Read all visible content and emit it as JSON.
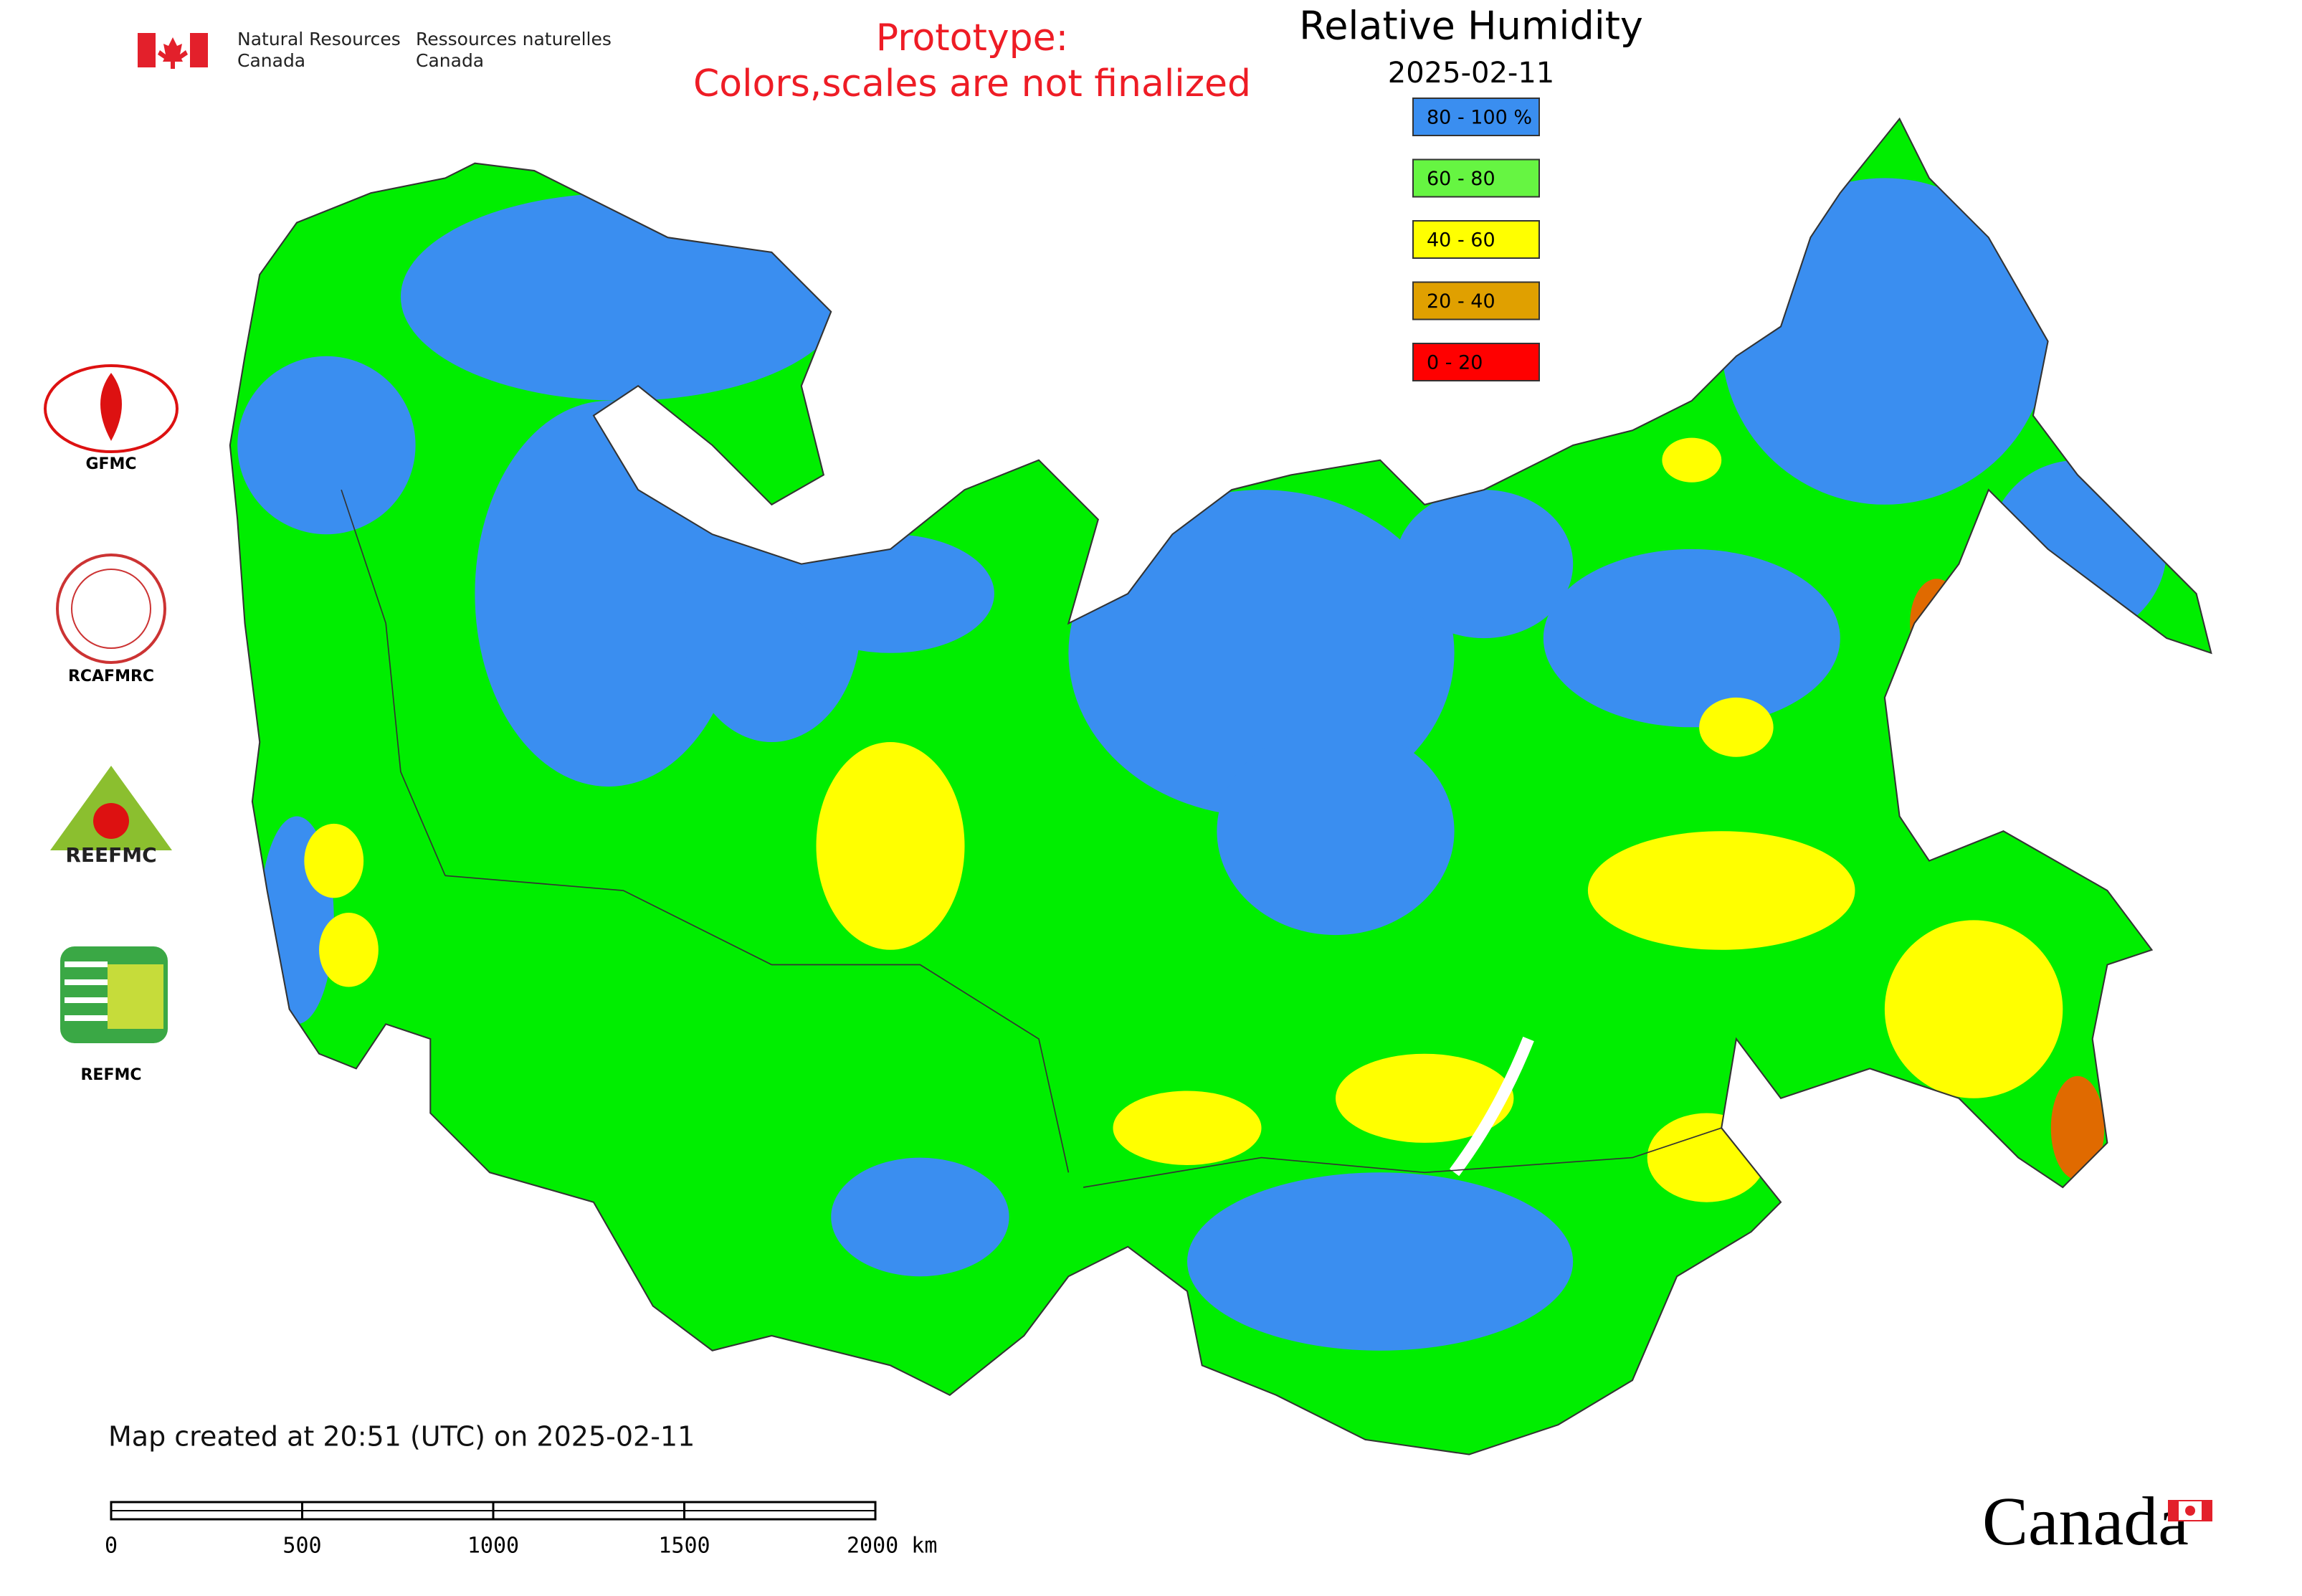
{
  "header": {
    "agency_en": [
      "Natural Resources",
      "Canada"
    ],
    "agency_fr": [
      "Ressources naturelles",
      "Canada"
    ],
    "notice": [
      "Prototype:",
      "Colors,scales are not finalized"
    ]
  },
  "title": "Relative Humidity",
  "date": "2025-02-11",
  "legend": [
    {
      "label": "80 - 100 %",
      "color": "#3a8ef0"
    },
    {
      "label": "60 - 80",
      "color": "#66f542"
    },
    {
      "label": "40 - 60",
      "color": "#ffff00"
    },
    {
      "label": "20 - 40",
      "color": "#e0a000"
    },
    {
      "label": "0 - 20",
      "color": "#ff0000"
    }
  ],
  "logos": [
    "GFMC",
    "RCAFMRC",
    "REEFMC",
    "REFMC"
  ],
  "footer": "Map created at 20:51 (UTC) on 2025-02-11",
  "scale_bar": [
    "0",
    "500",
    "1000",
    "1500",
    "2000 km"
  ],
  "wordmark": "Canada"
}
